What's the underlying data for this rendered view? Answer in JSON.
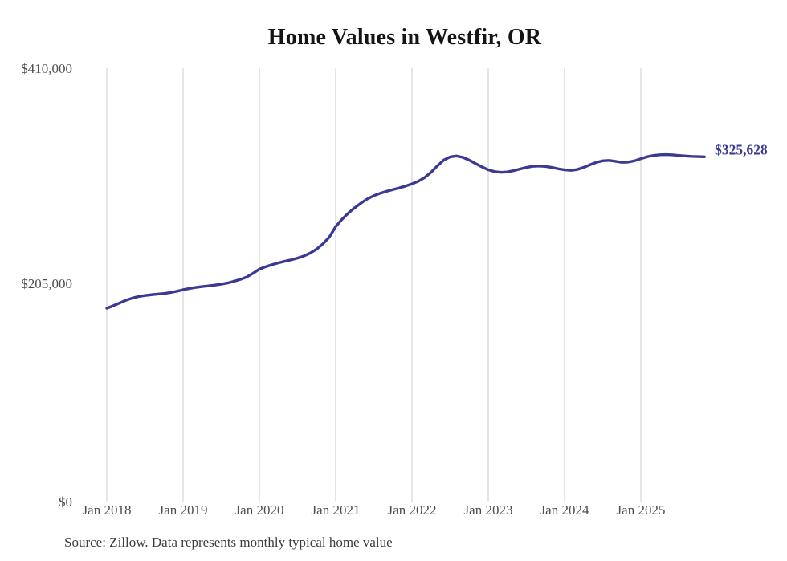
{
  "title": "Home Values in Westfir, OR",
  "source_note": "Source: Zillow. Data represents monthly typical home value",
  "colors": {
    "line": "#3b3a92",
    "end_label": "#3b3a92",
    "grid": "#cccccc",
    "title_text": "#141414",
    "axis_text": "#4d4d4d"
  },
  "chart_data": {
    "type": "line",
    "title": "Home Values in Westfir, OR",
    "xlabel": "",
    "ylabel": "",
    "ylim": [
      0,
      410000
    ],
    "grid": "vertical-only",
    "legend_position": "none",
    "end_label": "$325,628",
    "last_value": 325628,
    "y_ticks": [
      {
        "label": "$0",
        "value": 0
      },
      {
        "label": "$205,000",
        "value": 205000
      },
      {
        "label": "$410,000",
        "value": 410000
      }
    ],
    "x_ticks": [
      {
        "label": "Jan 2018",
        "month_index": 0
      },
      {
        "label": "Jan 2019",
        "month_index": 12
      },
      {
        "label": "Jan 2020",
        "month_index": 24
      },
      {
        "label": "Jan 2021",
        "month_index": 36
      },
      {
        "label": "Jan 2022",
        "month_index": 48
      },
      {
        "label": "Jan 2023",
        "month_index": 60
      },
      {
        "label": "Jan 2024",
        "month_index": 72
      },
      {
        "label": "Jan 2025",
        "month_index": 84
      }
    ],
    "series": [
      {
        "name": "Monthly typical home value",
        "start_month": "2018-01",
        "frequency": "monthly",
        "values": [
          181300,
          183600,
          186200,
          188800,
          190900,
          192400,
          193400,
          194100,
          194700,
          195300,
          196200,
          197400,
          198900,
          200100,
          201100,
          201900,
          202600,
          203300,
          204200,
          205300,
          206900,
          208700,
          211000,
          214500,
          218500,
          220800,
          222800,
          224500,
          226000,
          227400,
          229000,
          231000,
          233800,
          237600,
          242600,
          249000,
          259000,
          266000,
          272000,
          277000,
          281500,
          285500,
          288500,
          290800,
          292700,
          294300,
          295900,
          297700,
          299800,
          302300,
          305800,
          310800,
          317000,
          322500,
          325500,
          326400,
          325100,
          322500,
          319200,
          316000,
          313200,
          311500,
          310800,
          311200,
          312400,
          314000,
          315500,
          316500,
          316800,
          316400,
          315500,
          314200,
          313200,
          312700,
          313500,
          315500,
          318000,
          320300,
          321800,
          322200,
          321300,
          320400,
          320600,
          321800,
          323800,
          325700,
          326900,
          327500,
          327700,
          327400,
          326900,
          326400,
          326000,
          325800,
          325628
        ]
      }
    ]
  }
}
